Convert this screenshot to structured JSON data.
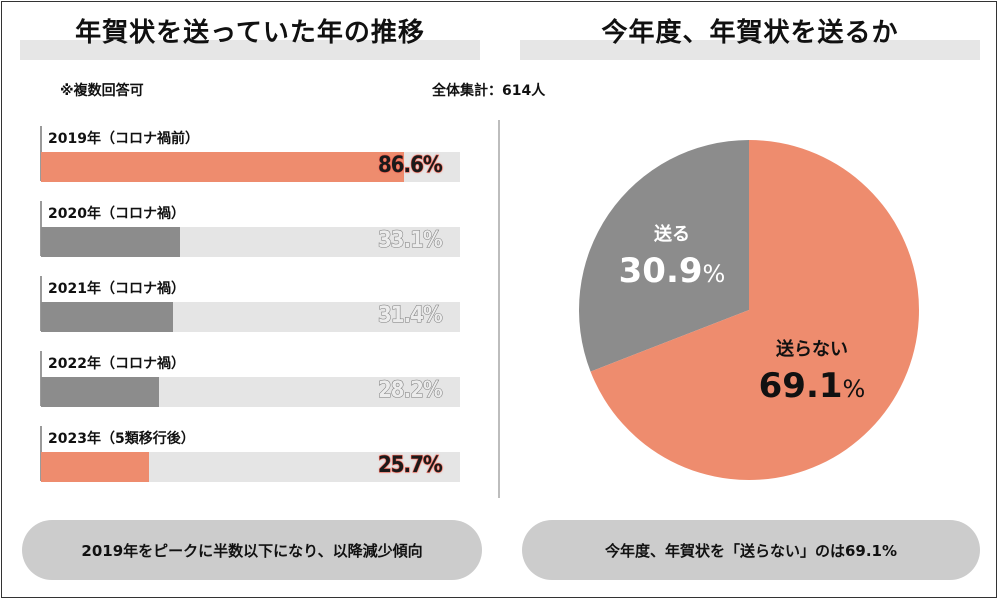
{
  "left_panel": {
    "title": "年賀状を送っていた年の推移",
    "note": "※複数回答可",
    "summary": "2019年をピークに半数以下になり、以降減少傾向"
  },
  "right_panel": {
    "title": "今年度、年賀状を送るか",
    "total": "全体集計：614人",
    "summary": "今年度、年賀状を「送らない」のは69.1%"
  },
  "colors": {
    "accent": "#ee8c6e",
    "gray": "#8c8c8c",
    "track": "#e5e5e5",
    "pill": "#cccccc"
  },
  "chart_data": [
    {
      "type": "bar",
      "orientation": "horizontal",
      "categories": [
        "2019年（コロナ禍前）",
        "2020年（コロナ禍）",
        "2021年（コロナ禍）",
        "2022年（コロナ禍）",
        "2023年（5類移行後）"
      ],
      "values": [
        86.6,
        33.1,
        31.4,
        28.2,
        25.7
      ],
      "value_labels": [
        "86.6%",
        "33.1%",
        "31.4%",
        "28.2%",
        "25.7%"
      ],
      "highlight": [
        true,
        false,
        false,
        false,
        true
      ],
      "xlim": [
        0,
        100
      ]
    },
    {
      "type": "pie",
      "labels": [
        "送る",
        "送らない"
      ],
      "values": [
        30.9,
        69.1
      ],
      "value_labels": [
        "30.9",
        "69.1"
      ],
      "unit": "%",
      "colors": [
        "#8c8c8c",
        "#ee8c6e"
      ]
    }
  ]
}
